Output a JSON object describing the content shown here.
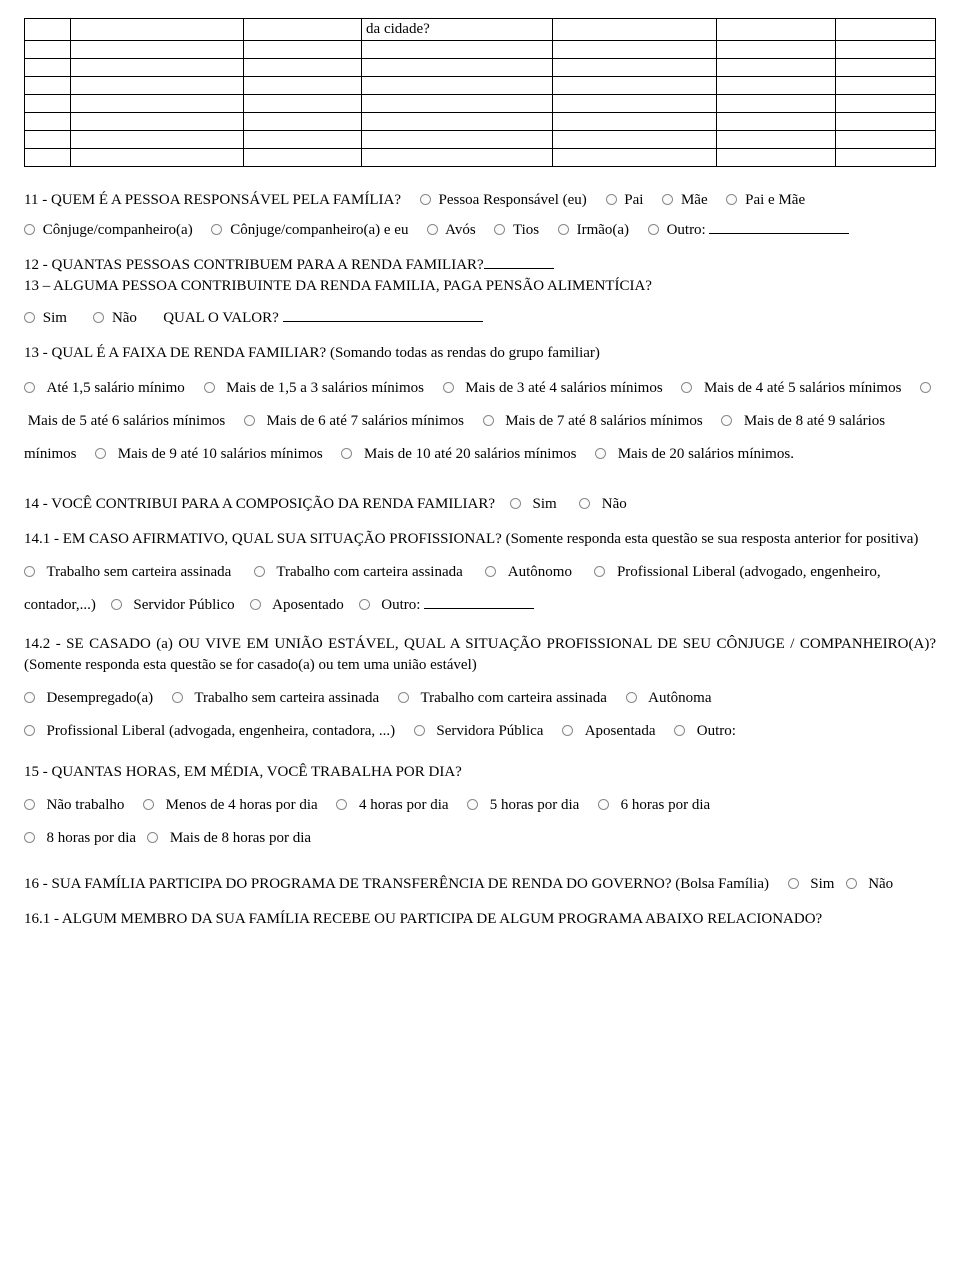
{
  "table": {
    "cols": 7,
    "rows": 8,
    "col_widths_pct": [
      5,
      19,
      13,
      21,
      18,
      13,
      11
    ],
    "cell_r0_c3": "da cidade?"
  },
  "q11": {
    "title": "11 - QUEM É A PESSOA RESPONSÁVEL PELA FAMÍLIA?",
    "opts": [
      "Pessoa Responsável (eu)",
      "Pai",
      "Mãe",
      "Pai e Mãe",
      "Cônjuge/companheiro(a)",
      "Cônjuge/companheiro(a) e eu",
      "Avós",
      "Tios",
      "Irmão(a)",
      "Outro:"
    ]
  },
  "q12": {
    "title": "12 - QUANTAS PESSOAS CONTRIBUEM PARA A RENDA FAMILIAR?"
  },
  "q13a": {
    "title": "13 – ALGUMA PESSOA CONTRIBUINTE DA RENDA FAMILIA, PAGA PENSÃO ALIMENTÍCIA?",
    "sim": "Sim",
    "nao": "Não",
    "qual": "QUAL O VALOR?"
  },
  "q13": {
    "title": "13 - QUAL É A FAIXA DE RENDA FAMILIAR? (Somando todas as rendas do grupo familiar)",
    "o1": "Até 1,5 salário mínimo",
    "o2": "Mais de 1,5 a 3 salários mínimos",
    "o3": "Mais de 3 até 4 salários mínimos",
    "o4": "Mais de 4 até 5 salários mínimos",
    "o5": "Mais de 5 até 6 salários mínimos",
    "o6": "Mais de 6 até 7 salários mínimos",
    "o7": "Mais de 7 até 8 salários mínimos",
    "o8": "Mais de 8 até 9 salários mínimos",
    "o9": "Mais de 9 até 10 salários mínimos",
    "o10": "Mais de 10 até 20 salários mínimos",
    "o11": "Mais de 20 salários mínimos."
  },
  "q14": {
    "title": "14 - VOCÊ CONTRIBUI PARA A COMPOSIÇÃO DA RENDA FAMILIAR?",
    "sim": "Sim",
    "nao": "Não"
  },
  "q14_1": {
    "title": "14.1 - EM CASO AFIRMATIVO, QUAL SUA SITUAÇÃO PROFISSIONAL? (Somente responda esta questão se sua resposta anterior for positiva)",
    "o1": "Trabalho sem carteira assinada",
    "o2": "Trabalho com carteira assinada",
    "o3": "Autônomo",
    "o4": "Profissional Liberal (advogado, engenheiro, contador,...)",
    "o5": "Servidor Público",
    "o6": "Aposentado",
    "o7": "Outro:"
  },
  "q14_2": {
    "title": "14.2 - SE CASADO (a) OU VIVE EM UNIÃO ESTÁVEL, QUAL A SITUAÇÃO PROFISSIONAL DE SEU CÔNJUGE / COMPANHEIRO(A)? (Somente responda esta questão se for casado(a) ou tem uma união estável)",
    "o1": "Desempregado(a)",
    "o2": "Trabalho sem carteira assinada",
    "o3": "Trabalho com carteira assinada",
    "o4": "Autônoma",
    "o5": "Profissional Liberal (advogada, engenheira, contadora, ...)",
    "o6": "Servidora Pública",
    "o7": "Aposentada",
    "o8": "Outro:"
  },
  "q15": {
    "title": "15 - QUANTAS HORAS, EM MÉDIA, VOCÊ TRABALHA POR DIA?",
    "o1": "Não trabalho",
    "o2": "Menos de 4 horas por dia",
    "o3": "4 horas por dia",
    "o4": "5 horas por dia",
    "o5": "6 horas por dia",
    "o6": "8 horas por dia",
    "o7": "Mais de 8 horas por dia"
  },
  "q16": {
    "title": "16 - SUA FAMÍLIA PARTICIPA DO PROGRAMA DE TRANSFERÊNCIA DE RENDA DO GOVERNO? (Bolsa Família)",
    "sim": "Sim",
    "nao": "Não"
  },
  "q16_1": {
    "title": "16.1 - ALGUM MEMBRO DA SUA FAMÍLIA RECEBE OU PARTICIPA DE ALGUM PROGRAMA ABAIXO RELACIONADO?"
  }
}
